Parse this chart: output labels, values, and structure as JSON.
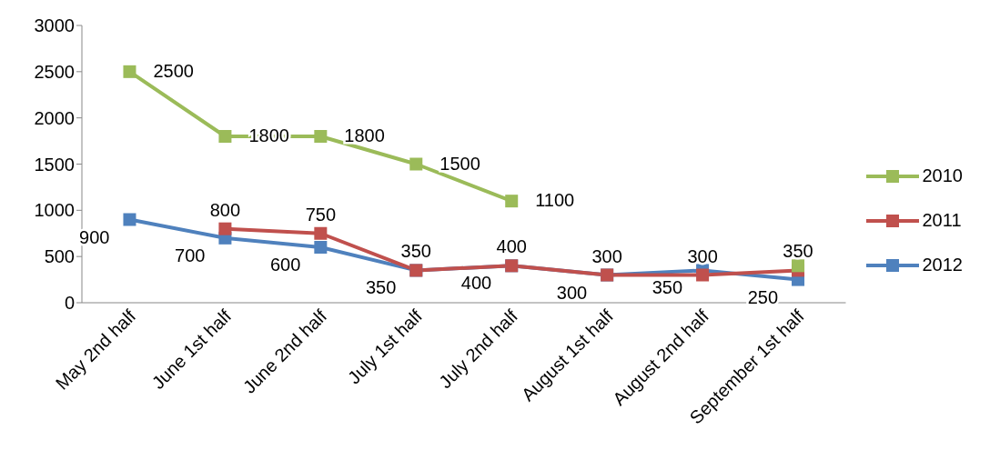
{
  "chart_data": {
    "type": "line",
    "categories": [
      "May 2nd half",
      "June 1st half",
      "June 2nd half",
      "July 1st half",
      "July 2nd half",
      "August 1st half",
      "August 2nd half",
      "September 1st half"
    ],
    "series": [
      {
        "name": "2010",
        "color": "#9bbb59",
        "values": [
          2500,
          1800,
          1800,
          1500,
          1100,
          null,
          null,
          400
        ],
        "value_labels": [
          "2500",
          "1800",
          "1800",
          "1500",
          "1100",
          null,
          null,
          null
        ]
      },
      {
        "name": "2011",
        "color": "#c0504d",
        "values": [
          null,
          800,
          750,
          350,
          400,
          300,
          300,
          350
        ],
        "value_labels": [
          null,
          "800",
          "750",
          "350",
          "400",
          "300",
          "300",
          "350"
        ]
      },
      {
        "name": "2012",
        "color": "#4f81bd",
        "values": [
          900,
          700,
          600,
          350,
          400,
          300,
          350,
          250
        ],
        "value_labels": [
          "900",
          "700",
          "600",
          "350",
          "400",
          "300",
          "350",
          "250"
        ]
      }
    ],
    "ylim": [
      0,
      3000
    ],
    "yticks": [
      0,
      500,
      1000,
      1500,
      2000,
      2500,
      3000
    ],
    "grid": false,
    "legend": "right",
    "marker": "square",
    "line_style": "solid"
  }
}
